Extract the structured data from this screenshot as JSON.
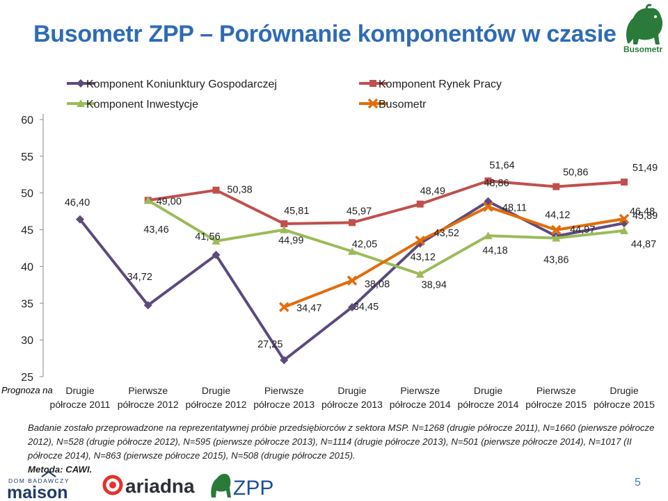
{
  "header": {
    "title": "Busometr ZPP – Porównanie komponentów w czasie",
    "brand_logo_text": "Busometr"
  },
  "chart_data": {
    "type": "line",
    "side_label": "Prognoza na",
    "categories": [
      "Drugie półrocze 2011",
      "Pierwsze półrocze 2012",
      "Drugie półrocze 2012",
      "Pierwsze półrocze 2013",
      "Drugie półrocze 2013",
      "Pierwsze półrocze 2014",
      "Drugie półrocze 2014",
      "Pierwsze półrocze 2015",
      "Drugie półrocze 2015"
    ],
    "category_lines": [
      [
        "Drugie",
        "półrocze 2011"
      ],
      [
        "Pierwsze",
        "półrocze 2012"
      ],
      [
        "Drugie",
        "półrocze 2012"
      ],
      [
        "Pierwsze",
        "półrocze 2013"
      ],
      [
        "Drugie",
        "półrocze 2013"
      ],
      [
        "Pierwsze",
        "półrocze 2014"
      ],
      [
        "Drugie",
        "półrocze 2014"
      ],
      [
        "Pierwsze",
        "półrocze 2015"
      ],
      [
        "Drugie",
        "półrocze 2015"
      ]
    ],
    "ylim": [
      25,
      60
    ],
    "yticks": [
      25,
      30,
      35,
      40,
      45,
      50,
      55,
      60
    ],
    "ytick_labels": [
      "25",
      "30",
      "35",
      "40",
      "45",
      "50",
      "55",
      "60"
    ],
    "grid": false,
    "legend_position": "top",
    "series": [
      {
        "name": "Komponent Koniunktury Gospodarczej",
        "color": "#5c4a7d",
        "marker": "diamond",
        "values": [
          46.4,
          34.72,
          41.56,
          27.25,
          34.45,
          43.12,
          48.86,
          44.12,
          45.89
        ],
        "labels": [
          "46,40",
          "34,72",
          "41,56",
          "27,25",
          "34,45",
          "43,12",
          "48,86",
          "44,12",
          "45,89"
        ]
      },
      {
        "name": "Komponent Rynek Pracy",
        "color": "#c0504d",
        "marker": "square",
        "values": [
          null,
          49.0,
          50.38,
          45.81,
          45.97,
          48.49,
          51.64,
          50.86,
          51.49
        ],
        "labels": [
          "",
          "49,00",
          "50,38",
          "45,81",
          "45,97",
          "48,49",
          "51,64",
          "50,86",
          "51,49"
        ]
      },
      {
        "name": "Komponent Inwestycje",
        "color": "#9bbb59",
        "marker": "triangle",
        "values": [
          null,
          49.0,
          43.46,
          44.99,
          42.05,
          38.94,
          44.18,
          43.86,
          44.87
        ],
        "labels": [
          "",
          "",
          "43,46",
          "44,99",
          "42,05",
          "38,94",
          "44,18",
          "43,86",
          "44,87"
        ]
      },
      {
        "name": "Busometr",
        "color": "#e36c0a",
        "marker": "x",
        "values": [
          null,
          null,
          null,
          34.47,
          38.08,
          43.52,
          48.11,
          44.97,
          46.48
        ],
        "labels": [
          "",
          "",
          "",
          "34,47",
          "38,08",
          "43,52",
          "48,11",
          "44,97",
          "46,48"
        ]
      }
    ]
  },
  "note": {
    "text": "Badanie zostało przeprowadzone na reprezentatywnej próbie przedsiębiorców z sektora MSP. N=1268 (drugie półrocze 2011), N=1660 (pierwsze półrocze 2012), N=528 (drugie półrocze 2012), N=595 (pierwsze półrocze 2013), N=1114 (drugie półrocze 2013), N=501 (pierwsze półrocze 2014), N=1017 (II półrocze 2014), N=863 (pierwsze półrocze 2015), N=508 (drugie półrocze 2015).",
    "method": "Metoda: CAWI."
  },
  "footer": {
    "logo1_top": "DOM BADAWCZY",
    "logo1_main": "maison",
    "logo2": "ariadna",
    "logo3": "ZPP",
    "page_number": "5"
  }
}
